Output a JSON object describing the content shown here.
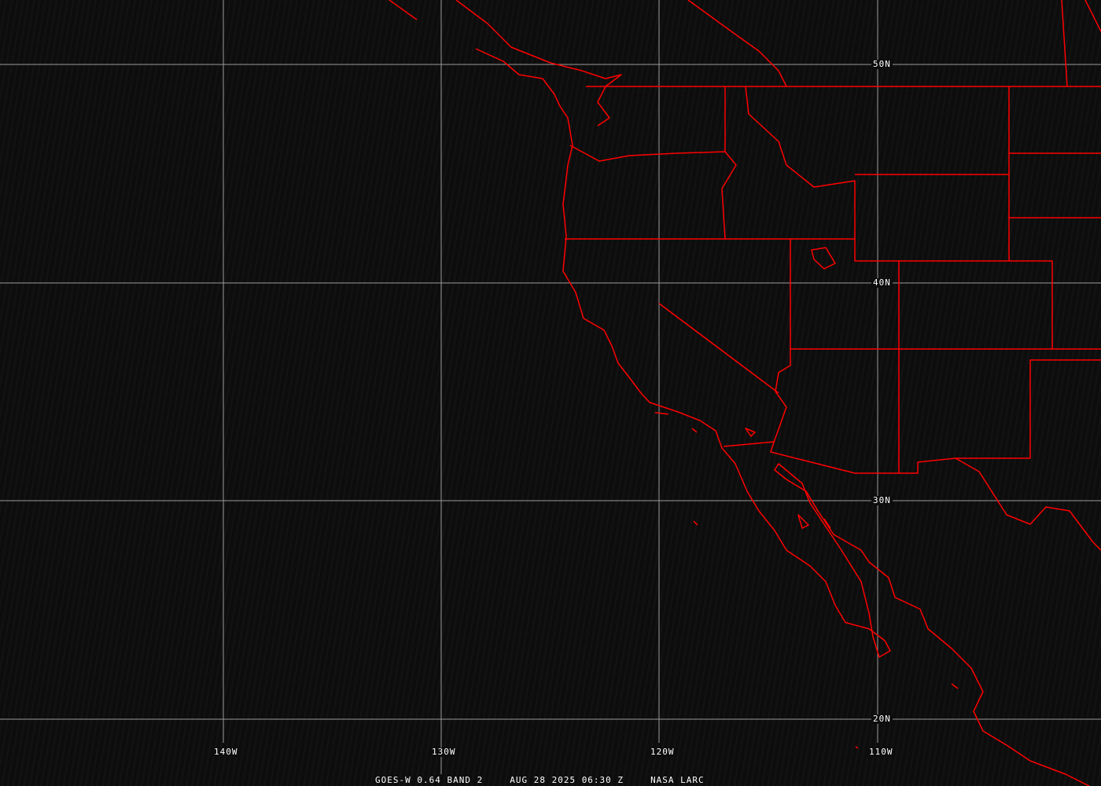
{
  "map": {
    "grid_color": "#9a9a9a",
    "boundary_color": "#ff0000",
    "longitude_labels": [
      "140W",
      "130W",
      "120W",
      "110W"
    ],
    "latitude_labels": [
      "50N",
      "40N",
      "30N",
      "20N"
    ]
  },
  "caption": {
    "product": "GOES-W 0.64 BAND 2",
    "datetime": "AUG 28 2025 06:30 Z",
    "source": "NASA LARC"
  }
}
